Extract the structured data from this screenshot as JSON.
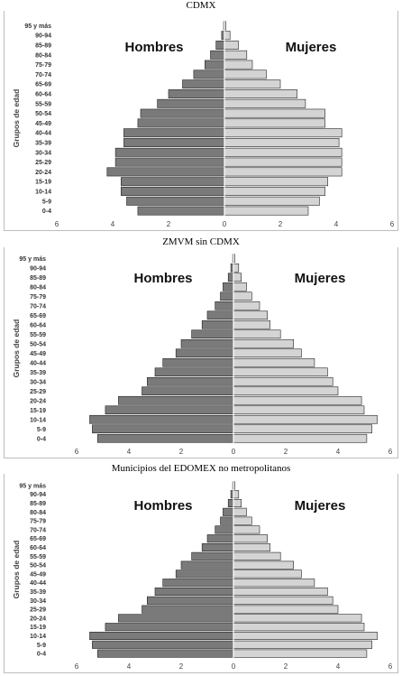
{
  "chart_data": [
    {
      "type": "bar",
      "orientation": "horizontal",
      "title": "CDMX",
      "ylabel": "Grupos de edad",
      "xlim": [
        -6,
        6
      ],
      "x_ticks": [
        "6",
        "4",
        "2",
        "0",
        "2",
        "4",
        "6"
      ],
      "categories": [
        "0-4",
        "5-9",
        "10-14",
        "15-19",
        "20-24",
        "25-29",
        "30-34",
        "35-39",
        "40-44",
        "45-49",
        "50-54",
        "55-59",
        "60-64",
        "65-69",
        "70-74",
        "75-79",
        "80-84",
        "85-89",
        "90-94",
        "95 y más"
      ],
      "series": [
        {
          "name": "Hombres",
          "values": [
            3.1,
            3.5,
            3.7,
            3.7,
            4.2,
            3.9,
            3.9,
            3.6,
            3.6,
            3.1,
            3.0,
            2.4,
            2.0,
            1.5,
            1.1,
            0.7,
            0.5,
            0.3,
            0.1,
            0.03
          ]
        },
        {
          "name": "Mujeres",
          "values": [
            3.0,
            3.4,
            3.6,
            3.7,
            4.2,
            4.2,
            4.2,
            4.1,
            4.2,
            3.6,
            3.6,
            2.9,
            2.6,
            2.0,
            1.5,
            1.0,
            0.8,
            0.5,
            0.2,
            0.05
          ]
        }
      ]
    },
    {
      "type": "bar",
      "orientation": "horizontal",
      "title": "ZMVM sin CDMX",
      "ylabel": "Grupos de edad",
      "xlim": [
        -6,
        6
      ],
      "x_ticks": [
        "6",
        "4",
        "2",
        "0",
        "2",
        "4",
        "6"
      ],
      "categories": [
        "0-4",
        "5-9",
        "10-14",
        "15-19",
        "20-24",
        "25-29",
        "30-34",
        "35-39",
        "40-44",
        "45-49",
        "50-54",
        "55-59",
        "60-64",
        "65-69",
        "70-74",
        "75-79",
        "80-84",
        "85-89",
        "90-94",
        "95 y más"
      ],
      "series": [
        {
          "name": "Hombres",
          "values": [
            5.2,
            5.4,
            5.5,
            4.9,
            4.4,
            3.5,
            3.3,
            3.0,
            2.7,
            2.2,
            2.0,
            1.6,
            1.2,
            1.0,
            0.7,
            0.5,
            0.4,
            0.2,
            0.1,
            0.03
          ]
        },
        {
          "name": "Mujeres",
          "values": [
            5.1,
            5.3,
            5.5,
            5.0,
            4.9,
            4.0,
            3.8,
            3.6,
            3.1,
            2.6,
            2.3,
            1.8,
            1.4,
            1.3,
            1.0,
            0.7,
            0.5,
            0.3,
            0.2,
            0.05
          ]
        }
      ]
    },
    {
      "type": "bar",
      "orientation": "horizontal",
      "title": "Municipios del EDOMEX no metropolitanos",
      "ylabel": "Grupos de edad",
      "xlim": [
        -6,
        6
      ],
      "x_ticks": [
        "6",
        "4",
        "2",
        "0",
        "2",
        "4",
        "6"
      ],
      "categories": [
        "0-4",
        "5-9",
        "10-14",
        "15-19",
        "20-24",
        "25-29",
        "30-34",
        "35-39",
        "40-44",
        "45-49",
        "50-54",
        "55-59",
        "60-64",
        "65-69",
        "70-74",
        "75-79",
        "80-84",
        "85-89",
        "90-94",
        "95 y más"
      ],
      "series": [
        {
          "name": "Hombres",
          "values": [
            5.2,
            5.4,
            5.5,
            4.9,
            4.4,
            3.5,
            3.3,
            3.0,
            2.7,
            2.2,
            2.0,
            1.6,
            1.2,
            1.0,
            0.7,
            0.5,
            0.4,
            0.2,
            0.1,
            0.03
          ]
        },
        {
          "name": "Mujeres",
          "values": [
            5.1,
            5.3,
            5.5,
            5.0,
            4.9,
            4.0,
            3.8,
            3.6,
            3.1,
            2.6,
            2.3,
            1.8,
            1.4,
            1.3,
            1.0,
            0.7,
            0.5,
            0.3,
            0.2,
            0.05
          ]
        }
      ]
    }
  ],
  "colors": {
    "hombres": "#7a7a7a",
    "mujeres": "#d4d4d4",
    "bar_stroke": "#222222"
  }
}
